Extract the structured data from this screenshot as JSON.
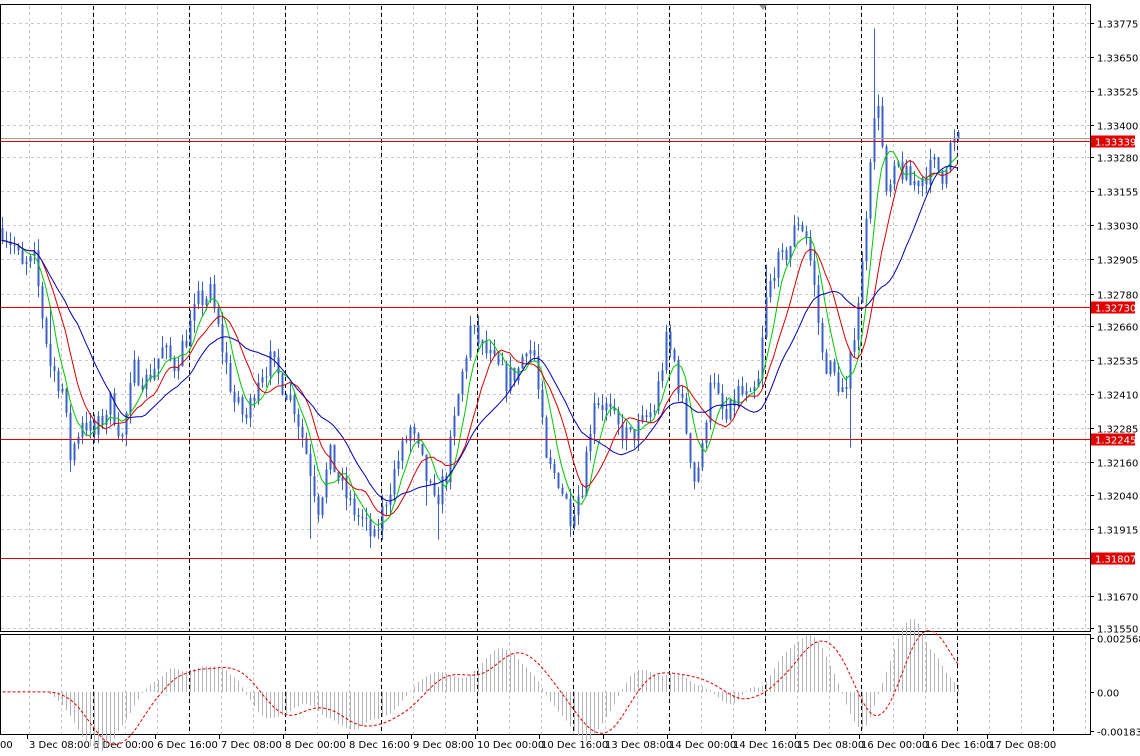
{
  "chart_data": [
    {
      "type": "candlestick",
      "symbol_hidden": true,
      "yticks": [
        "1.33775",
        "1.33650",
        "1.33525",
        "1.33400",
        "1.33280",
        "1.33155",
        "1.33030",
        "1.32905",
        "1.32780",
        "1.32660",
        "1.32535",
        "1.32410",
        "1.32285",
        "1.32160",
        "1.32040",
        "1.31915",
        "1.31670",
        "1.31550"
      ],
      "ytick_values": [
        1.33775,
        1.3365,
        1.33525,
        1.334,
        1.3328,
        1.33155,
        1.3303,
        1.32905,
        1.3278,
        1.3266,
        1.32535,
        1.3241,
        1.32285,
        1.3216,
        1.3204,
        1.31915,
        1.3167,
        1.3155
      ],
      "ylim": [
        1.3154,
        1.3384
      ],
      "xlabels": [
        "3 Dec 08:00",
        "6 Dec 00:00",
        "6 Dec 16:00",
        "7 Dec 08:00",
        "8 Dec 00:00",
        "8 Dec 16:00",
        "9 Dec 08:00",
        "10 Dec 00:00",
        "10 Dec 16:00",
        "13 Dec 08:00",
        "14 Dec 00:00",
        "14 Dec 16:00",
        "15 Dec 08:00",
        "16 Dec 00:00",
        "16 Dec 16:00",
        "17 Dec 08:00"
      ],
      "xlabel_first_partial": "00",
      "levels": [
        {
          "label": "1.33339",
          "value": 1.33339
        },
        {
          "label": "1.32730",
          "value": 1.3273
        },
        {
          "label": "1.32245",
          "value": 1.32245
        },
        {
          "label": "1.31807",
          "value": 1.31807
        }
      ],
      "price_path": [
        [
          0,
          1.3302
        ],
        [
          3,
          1.3295
        ],
        [
          5,
          1.3287
        ],
        [
          8,
          1.329
        ],
        [
          10,
          1.327
        ],
        [
          12,
          1.3252
        ],
        [
          15,
          1.3243
        ],
        [
          17,
          1.3218
        ],
        [
          20,
          1.3232
        ],
        [
          23,
          1.3226
        ],
        [
          27,
          1.3238
        ],
        [
          30,
          1.3225
        ],
        [
          33,
          1.325
        ],
        [
          36,
          1.3246
        ],
        [
          40,
          1.3257
        ],
        [
          43,
          1.3252
        ],
        [
          46,
          1.3262
        ],
        [
          49,
          1.3275
        ],
        [
          52,
          1.3278
        ],
        [
          55,
          1.3258
        ],
        [
          58,
          1.3238
        ],
        [
          61,
          1.3232
        ],
        [
          64,
          1.3248
        ],
        [
          67,
          1.3253
        ],
        [
          70,
          1.3245
        ],
        [
          73,
          1.3237
        ],
        [
          76,
          1.322
        ],
        [
          79,
          1.32
        ],
        [
          82,
          1.3218
        ],
        [
          84,
          1.321
        ],
        [
          87,
          1.32
        ],
        [
          90,
          1.3194
        ],
        [
          93,
          1.3187
        ],
        [
          96,
          1.3203
        ],
        [
          99,
          1.3217
        ],
        [
          102,
          1.3228
        ],
        [
          105,
          1.3215
        ],
        [
          108,
          1.32
        ],
        [
          111,
          1.3212
        ],
        [
          114,
          1.324
        ],
        [
          117,
          1.3265
        ],
        [
          120,
          1.3258
        ],
        [
          123,
          1.3252
        ],
        [
          126,
          1.3246
        ],
        [
          129,
          1.325
        ],
        [
          131,
          1.326
        ],
        [
          133,
          1.3255
        ],
        [
          136,
          1.3215
        ],
        [
          139,
          1.321
        ],
        [
          142,
          1.3197
        ],
        [
          145,
          1.3208
        ],
        [
          148,
          1.324
        ],
        [
          151,
          1.3236
        ],
        [
          154,
          1.3228
        ],
        [
          157,
          1.3225
        ],
        [
          160,
          1.323
        ],
        [
          163,
          1.3236
        ],
        [
          166,
          1.326
        ],
        [
          168,
          1.3253
        ],
        [
          171,
          1.3228
        ],
        [
          173,
          1.321
        ],
        [
          175,
          1.322
        ],
        [
          177,
          1.3248
        ],
        [
          179,
          1.3238
        ],
        [
          181,
          1.3231
        ],
        [
          184,
          1.3242
        ],
        [
          187,
          1.3238
        ],
        [
          189,
          1.3245
        ],
        [
          191,
          1.3275
        ],
        [
          193,
          1.3288
        ],
        [
          195,
          1.329
        ],
        [
          197,
          1.3296
        ],
        [
          199,
          1.3305
        ],
        [
          201,
          1.33
        ],
        [
          203,
          1.328
        ],
        [
          205,
          1.3255
        ],
        [
          207,
          1.325
        ],
        [
          209,
          1.3245
        ],
        [
          211,
          1.324
        ],
        [
          213,
          1.3265
        ],
        [
          215,
          1.3288
        ],
        [
          217,
          1.333
        ],
        [
          219,
          1.335
        ],
        [
          221,
          1.3312
        ],
        [
          224,
          1.3325
        ],
        [
          227,
          1.3318
        ],
        [
          230,
          1.3321
        ],
        [
          233,
          1.3325
        ],
        [
          235,
          1.3322
        ],
        [
          237,
          1.3332
        ],
        [
          239,
          1.3334
        ]
      ],
      "indicator": {
        "type": "histogram_with_signal",
        "yticks": [
          "0.002568",
          "0.00",
          "-0.001837"
        ],
        "ytick_values": [
          0.002568,
          0.0,
          -0.001837
        ]
      }
    }
  ]
}
